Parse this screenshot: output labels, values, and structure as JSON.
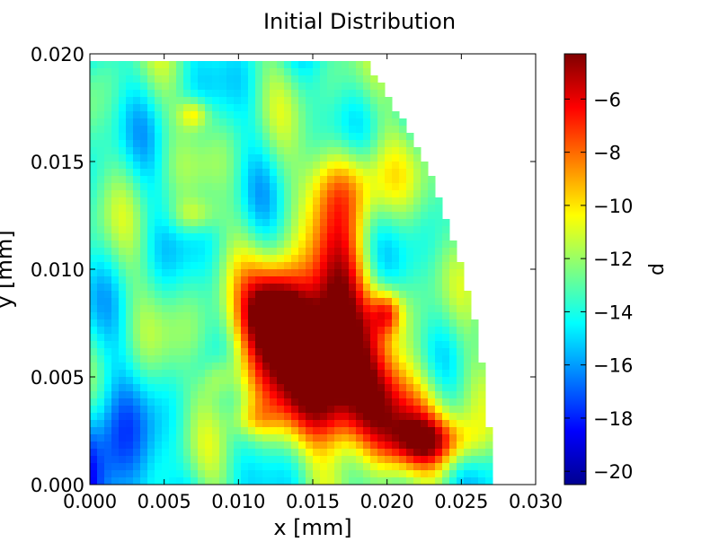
{
  "chart_data": {
    "type": "heatmap",
    "title": "Initial Distribution",
    "xlabel": "x [mm]",
    "ylabel": "y [mm]",
    "xlim": [
      0.0,
      0.03
    ],
    "ylim": [
      0.0,
      0.02
    ],
    "x_ticks": [
      "0.000",
      "0.005",
      "0.010",
      "0.015",
      "0.020",
      "0.025",
      "0.030"
    ],
    "y_ticks": [
      "0.000",
      "0.005",
      "0.010",
      "0.015",
      "0.020"
    ],
    "colorbar": {
      "label": "d",
      "range": [
        -20.5,
        -4.3
      ],
      "ticks": [
        "−6",
        "−8",
        "−10",
        "−12",
        "−14",
        "−16",
        "−18",
        "−20"
      ],
      "colormap": "jet"
    },
    "domain": "quarter-disc of radius ~0.027 mm",
    "description_values": {
      "outer_radius": 0.027,
      "core_region_value": -5.5,
      "origin_region_value": -18.5,
      "background_value": -13.5
    },
    "grid": false
  }
}
